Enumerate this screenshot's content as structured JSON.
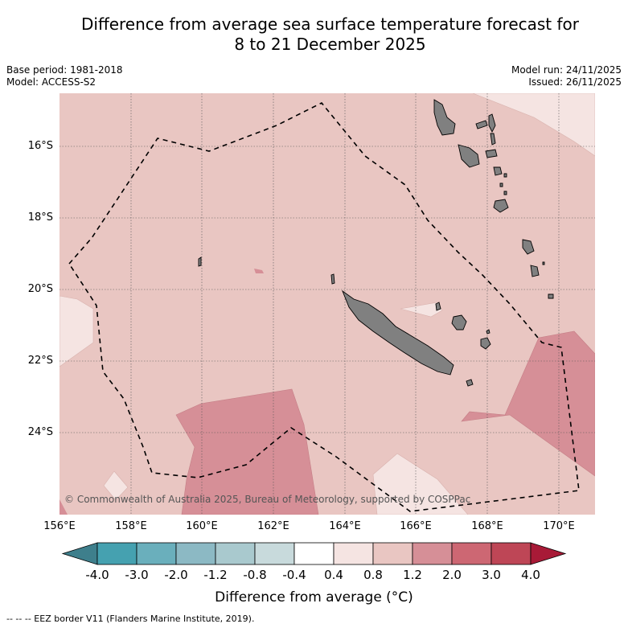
{
  "title": {
    "line1": "Difference from average sea surface temperature forecast for",
    "line2": "8 to 21 December 2025"
  },
  "meta": {
    "base_period": "Base period: 1981-2018",
    "model": "Model: ACCESS-S2",
    "model_run": "Model run: 24/11/2025",
    "issued": "Issued: 26/11/2025"
  },
  "axes": {
    "x_ticks": [
      "156°E",
      "158°E",
      "160°E",
      "162°E",
      "164°E",
      "166°E",
      "168°E",
      "170°E"
    ],
    "y_ticks": [
      "16°S",
      "18°S",
      "20°S",
      "22°S",
      "24°S"
    ]
  },
  "credit": "© Commonwealth of Australia 2025, Bureau of Meteorology, supported by COSPPac",
  "colorbar": {
    "title": "Difference from average (°C)",
    "labels": [
      "-4.0",
      "-3.0",
      "-2.0",
      "-1.2",
      "-0.8",
      "-0.4",
      "0.4",
      "0.8",
      "1.2",
      "2.0",
      "3.0",
      "4.0"
    ],
    "colors": {
      "under": "#3e7f8c",
      "bins": [
        "#45a1b0",
        "#6aafbc",
        "#8cb9c4",
        "#a9c9ce",
        "#c8dadc",
        "#ffffff",
        "#f5e4e2",
        "#e9c6c2",
        "#d68f97",
        "#cd6773",
        "#be4656"
      ],
      "over": "#a81a37"
    }
  },
  "legend_footer": "--  --  -- EEZ border V11 (Flanders Marine Institute, 2019).",
  "colors": {
    "base_anomaly": "#e9c6c2",
    "light_anomaly": "#f5e4e2",
    "warm_anomaly": "#d68f97",
    "land": "#808080"
  }
}
